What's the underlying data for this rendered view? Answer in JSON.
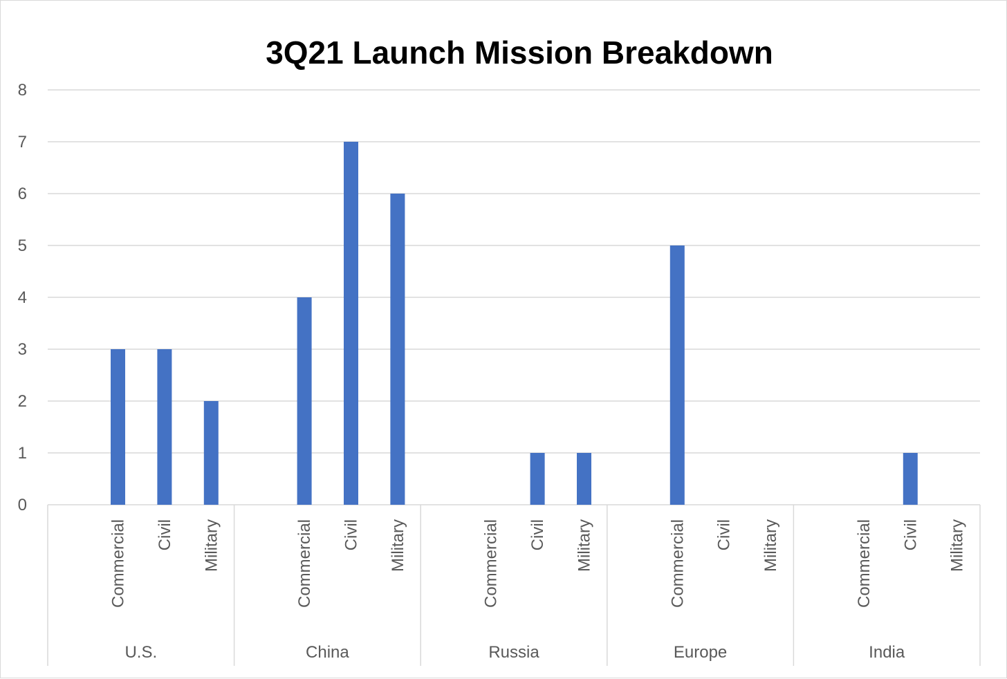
{
  "chart_data": {
    "type": "bar",
    "title": "3Q21 Launch Mission Breakdown",
    "xlabel": "",
    "ylabel": "",
    "ylim": [
      0,
      8
    ],
    "yticks": [
      0,
      1,
      2,
      3,
      4,
      5,
      6,
      7,
      8
    ],
    "grid": true,
    "legend": "none",
    "bar_color": "#4472C4",
    "groups": [
      {
        "name": "U.S.",
        "categories": [
          "Commercial",
          "Civil",
          "Military"
        ],
        "values": [
          3,
          3,
          2
        ]
      },
      {
        "name": "China",
        "categories": [
          "Commercial",
          "Civil",
          "Military"
        ],
        "values": [
          4,
          7,
          6
        ]
      },
      {
        "name": "Russia",
        "categories": [
          "Commercial",
          "Civil",
          "Military"
        ],
        "values": [
          0,
          1,
          1
        ]
      },
      {
        "name": "Europe",
        "categories": [
          "Commercial",
          "Civil",
          "Military"
        ],
        "values": [
          5,
          0,
          0
        ]
      },
      {
        "name": "India",
        "categories": [
          "Commercial",
          "Civil",
          "Military"
        ],
        "values": [
          0,
          1,
          0
        ]
      }
    ]
  }
}
